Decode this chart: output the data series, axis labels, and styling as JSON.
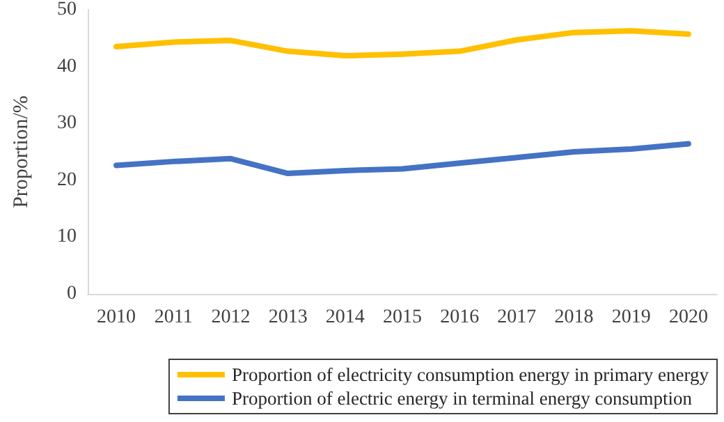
{
  "chart_data": {
    "type": "line",
    "ylabel": "Proportion/%",
    "categories": [
      "2010",
      "2011",
      "2012",
      "2013",
      "2014",
      "2015",
      "2016",
      "2017",
      "2018",
      "2019",
      "2020"
    ],
    "series": [
      {
        "name": "Proportion of electricity consumption energy in primary energy",
        "color": "#ffc000",
        "values": [
          43.5,
          44.3,
          44.6,
          42.7,
          41.9,
          42.2,
          42.7,
          44.7,
          46.0,
          46.3,
          45.7
        ]
      },
      {
        "name": "Proportion of electric energy in terminal energy consumption",
        "color": "#4472c4",
        "values": [
          22.6,
          23.3,
          23.8,
          21.2,
          21.7,
          22.0,
          23.0,
          24.0,
          25.0,
          25.5,
          26.4
        ]
      }
    ],
    "ylim": [
      0,
      50
    ],
    "yticks": [
      0,
      10,
      20,
      30,
      40,
      50
    ],
    "grid": false,
    "legend": "bottom right",
    "marker": "none",
    "line_style": "solid"
  }
}
